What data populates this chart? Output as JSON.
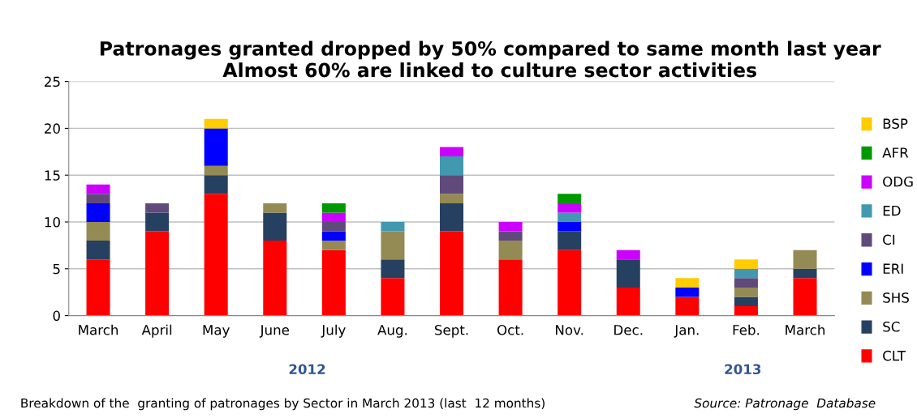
{
  "chart_data": {
    "type": "bar",
    "stacked": true,
    "title": "Patronages granted dropped by 50% compared to same month last year\nAlmost 60% are linked to culture sector activities",
    "categories": [
      "March",
      "April",
      "May",
      "June",
      "July",
      "Aug.",
      "Sept.",
      "Oct.",
      "Nov.",
      "Dec.",
      "Jan.",
      "Feb.",
      "March"
    ],
    "series": [
      {
        "name": "CLT",
        "color": "#ff0000",
        "values": [
          6,
          9,
          13,
          8,
          7,
          4,
          9,
          6,
          7,
          3,
          2,
          1,
          4
        ]
      },
      {
        "name": "SC",
        "color": "#264061",
        "values": [
          2,
          2,
          2,
          3,
          0,
          2,
          3,
          0,
          2,
          3,
          0,
          1,
          1
        ]
      },
      {
        "name": "SHS",
        "color": "#948a54",
        "values": [
          2,
          0,
          1,
          1,
          1,
          3,
          1,
          2,
          0,
          0,
          0,
          1,
          2
        ]
      },
      {
        "name": "ERI",
        "color": "#0000ff",
        "values": [
          2,
          0,
          4,
          0,
          1,
          0,
          0,
          0,
          1,
          0,
          1,
          0,
          0
        ]
      },
      {
        "name": "CI",
        "color": "#604a7b",
        "values": [
          1,
          1,
          0,
          0,
          1,
          0,
          2,
          1,
          0,
          0,
          0,
          1,
          0
        ]
      },
      {
        "name": "ED",
        "color": "#4198af",
        "values": [
          0,
          0,
          0,
          0,
          0,
          1,
          2,
          0,
          1,
          0,
          0,
          1,
          0
        ]
      },
      {
        "name": "ODG",
        "color": "#cc00ff",
        "values": [
          1,
          0,
          0,
          0,
          1,
          0,
          1,
          1,
          1,
          1,
          0,
          0,
          0
        ]
      },
      {
        "name": "AFR",
        "color": "#009900",
        "values": [
          0,
          0,
          0,
          0,
          1,
          0,
          0,
          0,
          1,
          0,
          0,
          0,
          0
        ]
      },
      {
        "name": "BSP",
        "color": "#ffcc00",
        "values": [
          0,
          0,
          1,
          0,
          0,
          0,
          0,
          0,
          0,
          0,
          1,
          1,
          0
        ]
      }
    ],
    "ylim": [
      0,
      25
    ],
    "yticks": [
      0,
      5,
      10,
      15,
      20,
      25
    ],
    "grid": "y",
    "legend": "right",
    "annotations": [
      "2012",
      "2013",
      "Breakdown of the  granting of patronages by Sector in March 2013 (last  12 months)",
      "Source: Patronage  Database"
    ]
  }
}
